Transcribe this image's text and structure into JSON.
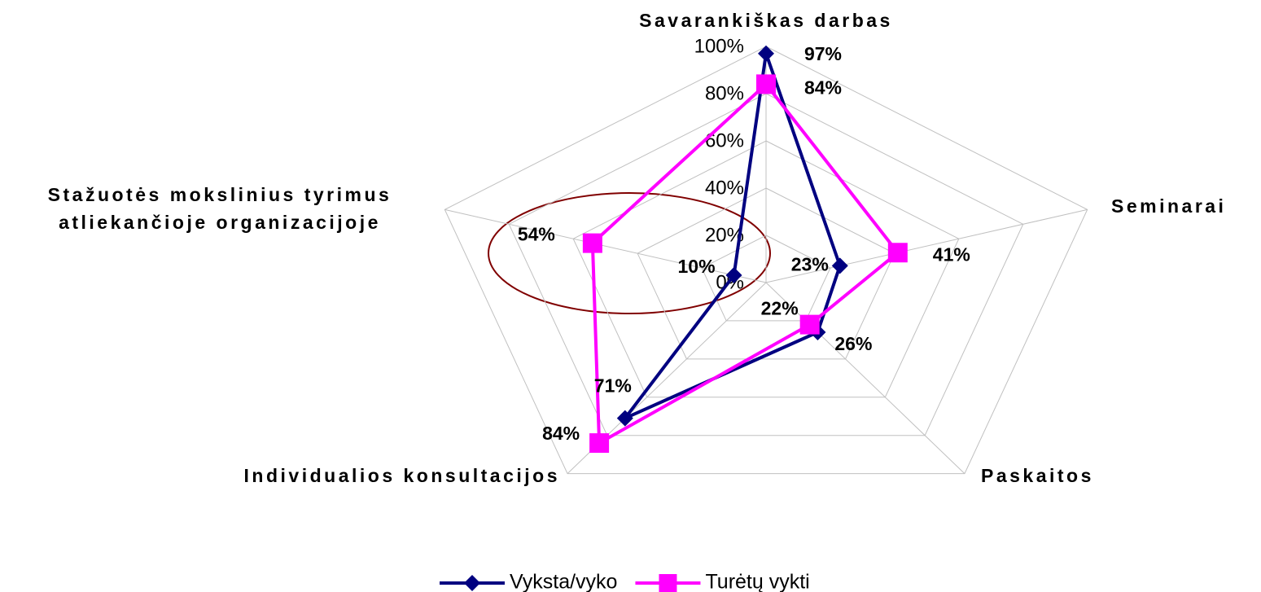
{
  "chart_data": {
    "type": "radar",
    "categories": [
      "Savarankiškas darbas",
      "Seminarai",
      "Paskaitos",
      "Individualios konsultacijos",
      "Stažuotės mokslinius tyrimus atliekančioje organizacijoje"
    ],
    "series": [
      {
        "name": "Vyksta/vyko",
        "color": "#000080",
        "values": [
          97,
          23,
          26,
          71,
          10
        ],
        "value_labels": [
          "97%",
          "23%",
          "26%",
          "71%",
          "10%"
        ]
      },
      {
        "name": "Turėtų vykti",
        "color": "#ff00ff",
        "values": [
          84,
          41,
          22,
          84,
          54
        ],
        "value_labels": [
          "84%",
          "41%",
          "22%",
          "84%",
          "54%"
        ]
      }
    ],
    "ylim": [
      0,
      100
    ],
    "yticks": [
      {
        "value": 0,
        "label": "0%"
      },
      {
        "value": 20,
        "label": "20%"
      },
      {
        "value": 40,
        "label": "40%"
      },
      {
        "value": 60,
        "label": "60%"
      },
      {
        "value": 80,
        "label": "80%"
      },
      {
        "value": 100,
        "label": "100%"
      }
    ],
    "grid": true,
    "legend": "bottom"
  }
}
